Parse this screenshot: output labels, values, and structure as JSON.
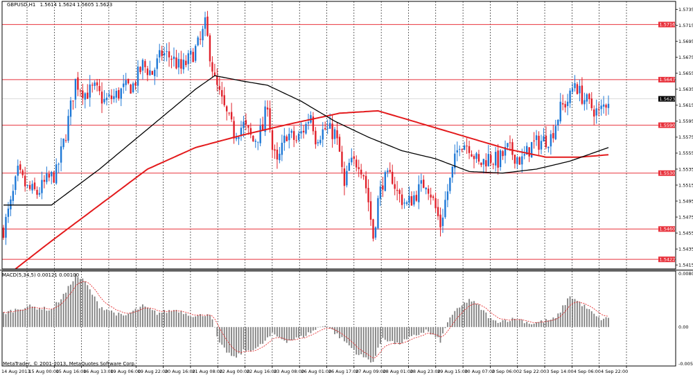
{
  "header": {
    "symbol": "GBPUSD,H1",
    "ohlc": "1.5614 1.5624 1.5605 1.5623"
  },
  "macd_header": "MACD(5,34,5) 0.00121 0.00100",
  "watermark": "MetaTrader, © 2001-2013, MetaQuotes Software Corp.",
  "colors": {
    "background": "#ffffff",
    "bull_candle": "#1e78d6",
    "bear_candle": "#e0202a",
    "sma_fast": "#000000",
    "sma_slow": "#e31a1c",
    "hline": "#e8323c",
    "grid": "#000000",
    "macd_hist": "#7f7f7f",
    "macd_signal": "#e31a1c"
  },
  "chart_data": [
    {
      "type": "candlestick",
      "title": "GBPUSD,H1",
      "ylim": [
        1.541,
        1.5745
      ],
      "price_ticks": [
        1.5735,
        1.5715,
        1.5695,
        1.5675,
        1.5655,
        1.5635,
        1.5615,
        1.5595,
        1.5575,
        1.5555,
        1.5535,
        1.5515,
        1.5495,
        1.5475,
        1.5455,
        1.5435,
        1.5415
      ],
      "x_labels": [
        "14 Aug 2013",
        "15 Aug 00:00",
        "15 Aug 16:00",
        "16 Aug 13:00",
        "19 Aug 06:00",
        "19 Aug 22:00",
        "20 Aug 16:00",
        "21 Aug 08:00",
        "22 Aug 00:00",
        "22 Aug 16:00",
        "23 Aug 08:00",
        "26 Aug 01:00",
        "26 Aug 17:00",
        "27 Aug 09:00",
        "28 Aug 01:00",
        "28 Aug 23:00",
        "29 Aug 15:00",
        "30 Aug 07:00",
        "2 Sep 06:00",
        "2 Sep 22:00",
        "3 Sep 14:00",
        "4 Sep 06:00",
        "4 Sep 22:00"
      ],
      "horizontal_levels": [
        {
          "label": "1.5716",
          "value": 1.5716
        },
        {
          "label": "1.5647",
          "value": 1.5647
        },
        {
          "label": "1.5590",
          "value": 1.559
        },
        {
          "label": "1.5530",
          "value": 1.553
        },
        {
          "label": "1.5460",
          "value": 1.546
        },
        {
          "label": "1.5422",
          "value": 1.5422
        }
      ],
      "current_price": {
        "label": "1.5623",
        "value": 1.5623
      },
      "close_path": [
        [
          0,
          1.546
        ],
        [
          3,
          1.549
        ],
        [
          6,
          1.553
        ],
        [
          10,
          1.551
        ],
        [
          14,
          1.5505
        ],
        [
          18,
          1.552
        ],
        [
          22,
          1.553
        ],
        [
          26,
          1.558
        ],
        [
          30,
          1.5645
        ],
        [
          34,
          1.563
        ],
        [
          38,
          1.5635
        ],
        [
          42,
          1.562
        ],
        [
          46,
          1.5625
        ],
        [
          50,
          1.5635
        ],
        [
          54,
          1.564
        ],
        [
          58,
          1.5665
        ],
        [
          62,
          1.5655
        ],
        [
          66,
          1.568
        ],
        [
          70,
          1.5675
        ],
        [
          74,
          1.566
        ],
        [
          78,
          1.5675
        ],
        [
          82,
          1.5695
        ],
        [
          84,
          1.5715
        ],
        [
          86,
          1.568
        ],
        [
          88,
          1.5645
        ],
        [
          92,
          1.561
        ],
        [
          96,
          1.558
        ],
        [
          100,
          1.559
        ],
        [
          104,
          1.557
        ],
        [
          108,
          1.5585
        ],
        [
          110,
          1.562
        ],
        [
          112,
          1.556
        ],
        [
          114,
          1.554
        ],
        [
          118,
          1.558
        ],
        [
          122,
          1.557
        ],
        [
          126,
          1.559
        ],
        [
          128,
          1.5605
        ],
        [
          130,
          1.5575
        ],
        [
          134,
          1.5585
        ],
        [
          138,
          1.558
        ],
        [
          140,
          1.5555
        ],
        [
          142,
          1.551
        ],
        [
          144,
          1.554
        ],
        [
          148,
          1.5545
        ],
        [
          150,
          1.553
        ],
        [
          152,
          1.5495
        ],
        [
          154,
          1.545
        ],
        [
          156,
          1.5495
        ],
        [
          158,
          1.552
        ],
        [
          162,
          1.5525
        ],
        [
          164,
          1.5505
        ],
        [
          168,
          1.549
        ],
        [
          172,
          1.5505
        ],
        [
          176,
          1.552
        ],
        [
          178,
          1.5505
        ],
        [
          180,
          1.5485
        ],
        [
          182,
          1.5465
        ],
        [
          184,
          1.5495
        ],
        [
          188,
          1.5545
        ],
        [
          190,
          1.557
        ],
        [
          194,
          1.5565
        ],
        [
          198,
          1.554
        ],
        [
          202,
          1.555
        ],
        [
          206,
          1.5545
        ],
        [
          210,
          1.556
        ],
        [
          214,
          1.555
        ],
        [
          216,
          1.5545
        ],
        [
          220,
          1.5565
        ],
        [
          224,
          1.557
        ],
        [
          228,
          1.5575
        ],
        [
          232,
          1.561
        ],
        [
          236,
          1.5625
        ],
        [
          238,
          1.5645
        ],
        [
          240,
          1.563
        ],
        [
          244,
          1.5615
        ],
        [
          248,
          1.5605
        ],
        [
          252,
          1.5623
        ]
      ],
      "sma_fast": [
        [
          0,
          1.549
        ],
        [
          20,
          1.549
        ],
        [
          40,
          1.5535
        ],
        [
          60,
          1.5585
        ],
        [
          80,
          1.5635
        ],
        [
          88,
          1.5652
        ],
        [
          100,
          1.5645
        ],
        [
          110,
          1.564
        ],
        [
          124,
          1.562
        ],
        [
          138,
          1.5595
        ],
        [
          152,
          1.5575
        ],
        [
          166,
          1.5558
        ],
        [
          180,
          1.5548
        ],
        [
          194,
          1.5532
        ],
        [
          208,
          1.553
        ],
        [
          222,
          1.5535
        ],
        [
          236,
          1.5545
        ],
        [
          252,
          1.5562
        ]
      ],
      "sma_slow": [
        [
          5,
          1.541
        ],
        [
          20,
          1.5445
        ],
        [
          40,
          1.549
        ],
        [
          60,
          1.5535
        ],
        [
          80,
          1.5562
        ],
        [
          100,
          1.5578
        ],
        [
          120,
          1.5592
        ],
        [
          140,
          1.5605
        ],
        [
          156,
          1.5608
        ],
        [
          174,
          1.5592
        ],
        [
          192,
          1.5576
        ],
        [
          210,
          1.556
        ],
        [
          226,
          1.555
        ],
        [
          240,
          1.555
        ],
        [
          252,
          1.5553
        ]
      ]
    },
    {
      "type": "bar",
      "title": "MACD(5,34,5) 0.00121 0.00100",
      "ylim": [
        -0.00561,
        0.00807
      ],
      "y_ticks": [
        0.00807,
        0.0,
        -0.00561
      ],
      "histogram_path": [
        [
          0,
          0.002
        ],
        [
          10,
          0.003
        ],
        [
          20,
          0.0025
        ],
        [
          26,
          0.005
        ],
        [
          30,
          0.0075
        ],
        [
          34,
          0.0065
        ],
        [
          40,
          0.003
        ],
        [
          50,
          0.0015
        ],
        [
          58,
          0.003
        ],
        [
          64,
          0.002
        ],
        [
          72,
          0.0025
        ],
        [
          80,
          0.0015
        ],
        [
          86,
          0.002
        ],
        [
          90,
          -0.0025
        ],
        [
          96,
          -0.0045
        ],
        [
          100,
          -0.0035
        ],
        [
          106,
          -0.003
        ],
        [
          112,
          -0.001
        ],
        [
          118,
          -0.002
        ],
        [
          124,
          -0.0015
        ],
        [
          134,
          0.0004
        ],
        [
          142,
          -0.002
        ],
        [
          148,
          -0.004
        ],
        [
          154,
          -0.005
        ],
        [
          158,
          -0.0015
        ],
        [
          164,
          -0.0025
        ],
        [
          170,
          -0.0015
        ],
        [
          176,
          -0.0005
        ],
        [
          182,
          -0.002
        ],
        [
          186,
          0.0015
        ],
        [
          194,
          0.004
        ],
        [
          198,
          0.003
        ],
        [
          204,
          0.0008
        ],
        [
          214,
          0.0012
        ],
        [
          220,
          0.0005
        ],
        [
          230,
          0.0012
        ],
        [
          236,
          0.0045
        ],
        [
          242,
          0.003
        ],
        [
          248,
          0.0012
        ],
        [
          252,
          0.0012
        ]
      ]
    }
  ]
}
